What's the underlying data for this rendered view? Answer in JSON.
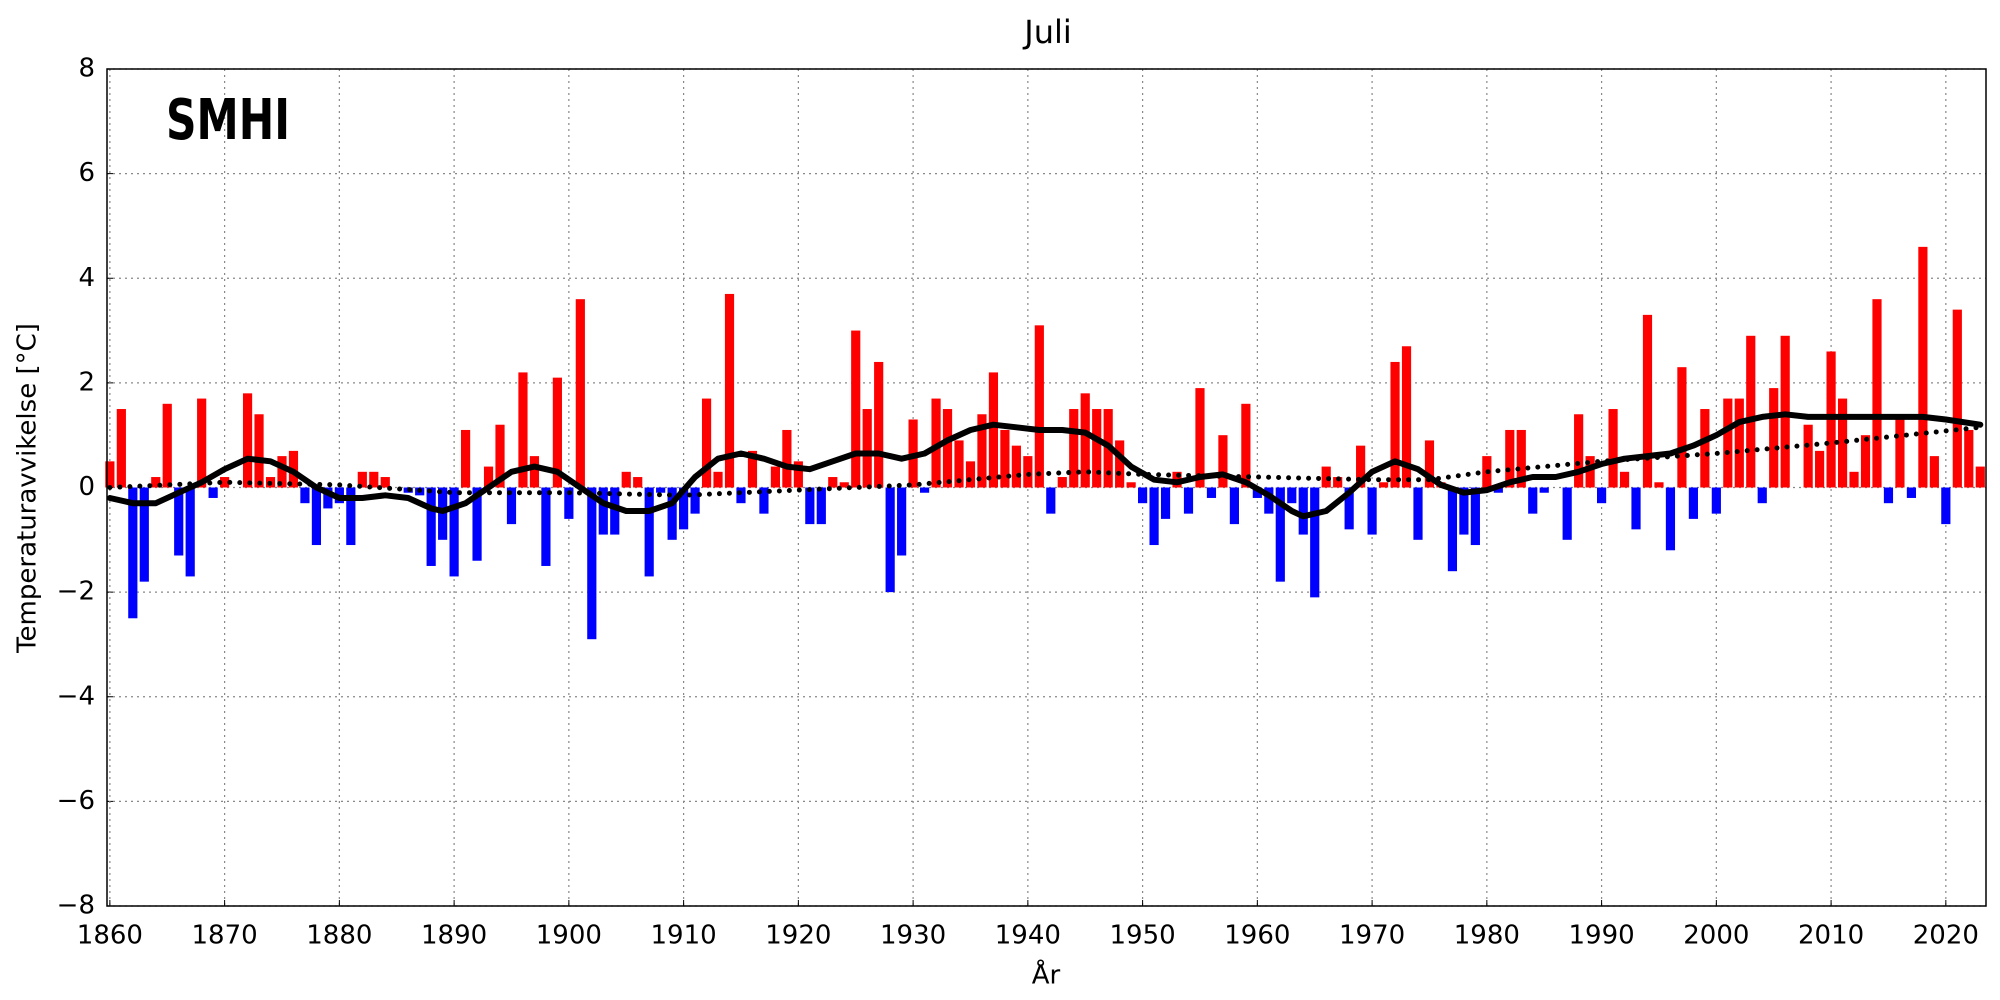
{
  "chart_data": {
    "type": "bar",
    "title": "Juli",
    "xlabel": "År",
    "ylabel": "Temperaturavvikelse [°C]",
    "logo": "SMHI",
    "x": [
      1860,
      1861,
      1862,
      1863,
      1864,
      1865,
      1866,
      1867,
      1868,
      1869,
      1870,
      1871,
      1872,
      1873,
      1874,
      1875,
      1876,
      1877,
      1878,
      1879,
      1880,
      1881,
      1882,
      1883,
      1884,
      1885,
      1886,
      1887,
      1888,
      1889,
      1890,
      1891,
      1892,
      1893,
      1894,
      1895,
      1896,
      1897,
      1898,
      1899,
      1900,
      1901,
      1902,
      1903,
      1904,
      1905,
      1906,
      1907,
      1908,
      1909,
      1910,
      1911,
      1912,
      1913,
      1914,
      1915,
      1916,
      1917,
      1918,
      1919,
      1920,
      1921,
      1922,
      1923,
      1924,
      1925,
      1926,
      1927,
      1928,
      1929,
      1930,
      1931,
      1932,
      1933,
      1934,
      1935,
      1936,
      1937,
      1938,
      1939,
      1940,
      1941,
      1942,
      1943,
      1944,
      1945,
      1946,
      1947,
      1948,
      1949,
      1950,
      1951,
      1952,
      1953,
      1954,
      1955,
      1956,
      1957,
      1958,
      1959,
      1960,
      1961,
      1962,
      1963,
      1964,
      1965,
      1966,
      1967,
      1968,
      1969,
      1970,
      1971,
      1972,
      1973,
      1974,
      1975,
      1976,
      1977,
      1978,
      1979,
      1980,
      1981,
      1982,
      1983,
      1984,
      1985,
      1986,
      1987,
      1988,
      1989,
      1990,
      1991,
      1992,
      1993,
      1994,
      1995,
      1996,
      1997,
      1998,
      1999,
      2000,
      2001,
      2002,
      2003,
      2004,
      2005,
      2006,
      2007,
      2008,
      2009,
      2010,
      2011,
      2012,
      2013,
      2014,
      2015,
      2016,
      2017,
      2018,
      2019,
      2020,
      2021,
      2022,
      2023
    ],
    "values": [
      0.5,
      1.5,
      -2.5,
      -1.8,
      0.2,
      1.6,
      -1.3,
      -1.7,
      1.7,
      -0.2,
      0.2,
      0.0,
      1.8,
      1.4,
      0.2,
      0.6,
      0.7,
      -0.3,
      -1.1,
      -0.4,
      -0.3,
      -1.1,
      0.3,
      0.3,
      0.2,
      0.0,
      -0.1,
      -0.15,
      -1.5,
      -1.0,
      -1.7,
      1.1,
      -1.4,
      0.4,
      1.2,
      -0.7,
      2.2,
      0.6,
      -1.5,
      2.1,
      -0.6,
      3.6,
      -2.9,
      -0.9,
      -0.9,
      0.3,
      0.2,
      -1.7,
      -0.1,
      -1.0,
      -0.8,
      -0.5,
      1.7,
      0.3,
      3.7,
      -0.3,
      0.7,
      -0.5,
      0.4,
      1.1,
      0.5,
      -0.7,
      -0.7,
      0.2,
      0.1,
      3.0,
      1.5,
      2.4,
      -2.0,
      -1.3,
      1.3,
      -0.1,
      1.7,
      1.5,
      0.9,
      0.5,
      1.4,
      2.2,
      1.1,
      0.8,
      0.6,
      3.1,
      -0.5,
      0.2,
      1.5,
      1.8,
      1.5,
      1.5,
      0.9,
      0.1,
      -0.3,
      -1.1,
      -0.6,
      0.3,
      -0.5,
      1.9,
      -0.2,
      1.0,
      -0.7,
      1.6,
      -0.2,
      -0.5,
      -1.8,
      -0.3,
      -0.9,
      -2.1,
      0.4,
      0.2,
      -0.8,
      0.8,
      -0.9,
      0.1,
      2.4,
      2.7,
      -1.0,
      0.9,
      0.1,
      -1.6,
      -0.9,
      -1.1,
      0.6,
      -0.1,
      1.1,
      1.1,
      -0.5,
      -0.1,
      0.0,
      -1.0,
      1.4,
      0.6,
      -0.3,
      1.5,
      0.3,
      -0.8,
      3.3,
      0.1,
      -1.2,
      2.3,
      -0.6,
      1.5,
      -0.5,
      1.7,
      1.7,
      2.9,
      -0.3,
      1.9,
      2.9,
      0.0,
      1.2,
      0.7,
      2.6,
      1.7,
      0.3,
      1.0,
      3.6,
      -0.3,
      1.3,
      -0.2,
      4.6,
      0.6,
      -0.7,
      3.4,
      1.1,
      0.4
    ],
    "positive_color": "#ff0000",
    "negative_color": "#0000ff",
    "lines": [
      {
        "style": "solid",
        "color": "#000000",
        "x": [
          1860,
          1862,
          1864,
          1866,
          1868,
          1870,
          1872,
          1874,
          1876,
          1878,
          1880,
          1882,
          1884,
          1886,
          1888,
          1889,
          1891,
          1893,
          1895,
          1897,
          1899,
          1901,
          1903,
          1905,
          1907,
          1909,
          1911,
          1913,
          1915,
          1917,
          1919,
          1921,
          1923,
          1925,
          1927,
          1929,
          1931,
          1933,
          1935,
          1937,
          1939,
          1941,
          1943,
          1945,
          1947,
          1949,
          1951,
          1953,
          1955,
          1957,
          1959,
          1961,
          1963,
          1964,
          1966,
          1968,
          1970,
          1972,
          1974,
          1976,
          1978,
          1980,
          1982,
          1984,
          1986,
          1988,
          1990,
          1992,
          1994,
          1996,
          1998,
          2000,
          2002,
          2004,
          2006,
          2008,
          2010,
          2012,
          2014,
          2016,
          2018,
          2020,
          2023
        ],
        "values": [
          -0.2,
          -0.3,
          -0.3,
          -0.1,
          0.1,
          0.35,
          0.55,
          0.5,
          0.3,
          0.0,
          -0.2,
          -0.2,
          -0.15,
          -0.2,
          -0.4,
          -0.45,
          -0.3,
          0.0,
          0.3,
          0.4,
          0.3,
          0.0,
          -0.3,
          -0.45,
          -0.45,
          -0.3,
          0.2,
          0.55,
          0.65,
          0.55,
          0.4,
          0.35,
          0.5,
          0.65,
          0.65,
          0.55,
          0.65,
          0.9,
          1.1,
          1.2,
          1.15,
          1.1,
          1.1,
          1.05,
          0.8,
          0.4,
          0.15,
          0.1,
          0.2,
          0.25,
          0.1,
          -0.15,
          -0.45,
          -0.55,
          -0.45,
          -0.1,
          0.3,
          0.5,
          0.35,
          0.05,
          -0.1,
          -0.05,
          0.1,
          0.2,
          0.2,
          0.3,
          0.45,
          0.55,
          0.6,
          0.65,
          0.8,
          1.0,
          1.25,
          1.35,
          1.4,
          1.35,
          1.35,
          1.35,
          1.35,
          1.35,
          1.35,
          1.3,
          1.2
        ]
      },
      {
        "style": "dotted",
        "color": "#000000",
        "x": [
          1860,
          1870,
          1880,
          1890,
          1900,
          1910,
          1920,
          1930,
          1940,
          1945,
          1950,
          1960,
          1970,
          1975,
          1980,
          1990,
          2000,
          2010,
          2023
        ],
        "values": [
          0.0,
          0.1,
          0.05,
          -0.1,
          -0.1,
          -0.15,
          -0.05,
          0.05,
          0.25,
          0.3,
          0.25,
          0.2,
          0.15,
          0.15,
          0.3,
          0.5,
          0.65,
          0.85,
          1.15
        ]
      }
    ],
    "xlim": [
      1859.75,
      2023.5
    ],
    "xticks": [
      1860,
      1870,
      1880,
      1890,
      1900,
      1910,
      1920,
      1930,
      1940,
      1950,
      1960,
      1970,
      1980,
      1990,
      2000,
      2010,
      2020
    ],
    "ylim": [
      -8,
      8
    ],
    "yticks": [
      {
        "value": -8,
        "label": "−8"
      },
      {
        "value": -6,
        "label": "−6"
      },
      {
        "value": -4,
        "label": "−4"
      },
      {
        "value": -2,
        "label": "−2"
      },
      0,
      2,
      4,
      6,
      8
    ],
    "grid": true
  }
}
